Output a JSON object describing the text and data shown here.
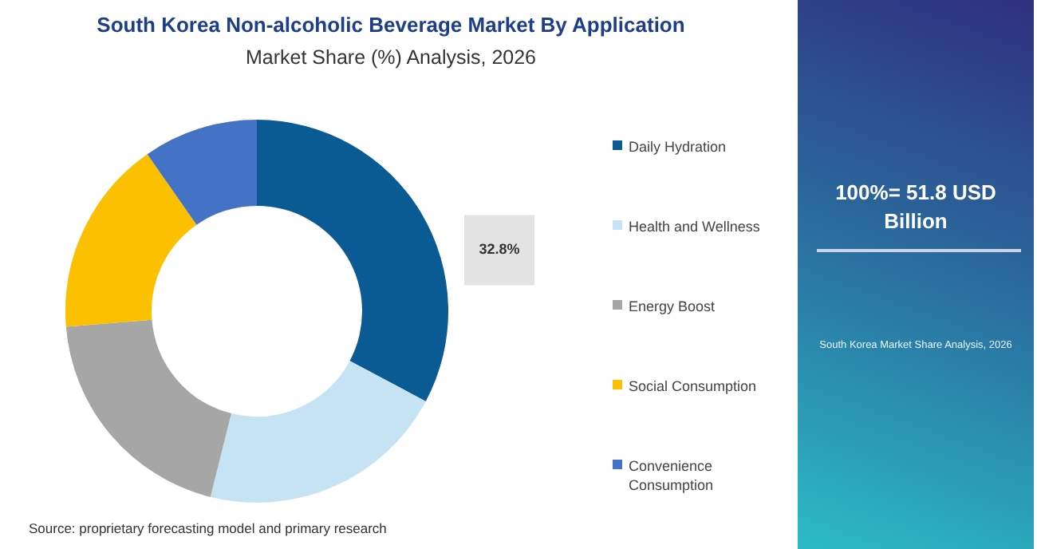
{
  "chart_data": {
    "type": "donut",
    "title": "South Korea Non-alcoholic Beverage Market By Application",
    "subtitle": "Market Share (%) Analysis, 2026",
    "categories": [
      "Daily Hydration",
      "Health and Wellness",
      "Energy Boost",
      "Social Consumption",
      "Convenience Consumption"
    ],
    "values": [
      32.8,
      21.1,
      19.8,
      16.6,
      9.7
    ],
    "colors": [
      "#0a5a93",
      "#c5e3f3",
      "#a6a6a6",
      "#fbc100",
      "#4472c4"
    ],
    "value_labels": [
      "32.8%",
      null,
      null,
      null,
      null
    ],
    "legend": "right",
    "annotations": [
      "100%= 51.8 USD Billion",
      "South Korea Market Share Analysis, 2026",
      "Source: proprietary forecasting model and primary research"
    ]
  }
}
